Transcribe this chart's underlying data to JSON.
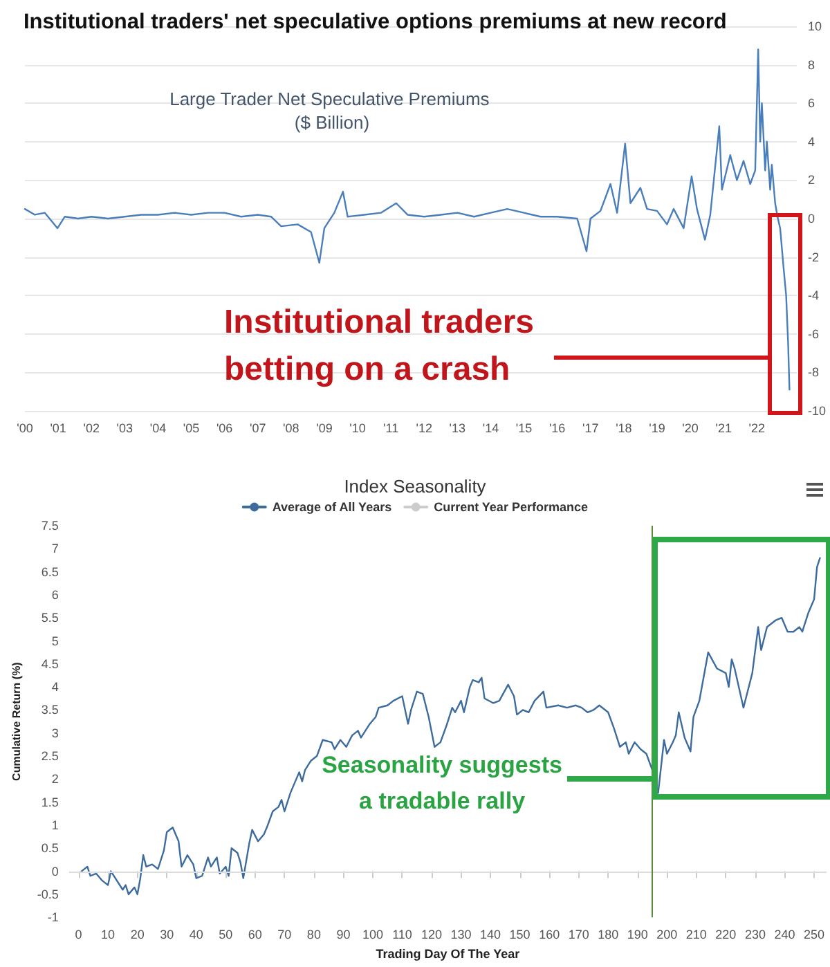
{
  "chart_data": [
    {
      "type": "line",
      "title": "Institutional traders' net speculative options premiums at new record",
      "subtitle": "Large Trader Net Speculative Premiums ($ Billion)",
      "x": [
        2000,
        2000.3,
        2000.6,
        2000.98,
        2001.2,
        2001.6,
        2002,
        2002.5,
        2003,
        2003.5,
        2004,
        2004.5,
        2005,
        2005.5,
        2006,
        2006.5,
        2007,
        2007.4,
        2007.7,
        2008.2,
        2008.6,
        2008.85,
        2009,
        2009.3,
        2009.56,
        2009.7,
        2010.2,
        2010.7,
        2011.16,
        2011.5,
        2012,
        2012.5,
        2013,
        2013.5,
        2014,
        2014.5,
        2015,
        2015.5,
        2016,
        2016.6,
        2016.88,
        2017,
        2017.3,
        2017.6,
        2017.8,
        2018.04,
        2018.2,
        2018.5,
        2018.7,
        2019,
        2019.3,
        2019.5,
        2019.8,
        2020.04,
        2020.2,
        2020.44,
        2020.6,
        2020.87,
        2020.95,
        2021.2,
        2021.4,
        2021.6,
        2021.8,
        2021.95,
        2022.04,
        2022.1,
        2022.15,
        2022.25,
        2022.3,
        2022.4,
        2022.45,
        2022.55,
        2022.62,
        2022.7,
        2022.8,
        2022.88,
        2022.94,
        2022.98
      ],
      "series": [
        {
          "color": "#4a7ebb",
          "values": [
            0.5,
            0.2,
            0.3,
            -0.5,
            0.1,
            0,
            0.1,
            0,
            0.1,
            0.2,
            0.2,
            0.3,
            0.2,
            0.3,
            0.3,
            0.1,
            0.2,
            0.1,
            -0.4,
            -0.3,
            -0.7,
            -2.3,
            -0.5,
            0.3,
            1.4,
            0.1,
            0.2,
            0.3,
            0.8,
            0.2,
            0.1,
            0.2,
            0.3,
            0.1,
            0.3,
            0.5,
            0.3,
            0.1,
            0.1,
            0,
            -1.7,
            0,
            0.4,
            1.8,
            0.3,
            3.9,
            0.8,
            1.6,
            0.5,
            0.4,
            -0.3,
            0.5,
            -0.5,
            2.2,
            0.5,
            -1.1,
            0.2,
            4.8,
            1.5,
            3.3,
            2,
            3,
            1.8,
            2.5,
            8.8,
            4,
            6,
            2.5,
            4,
            1.5,
            2.8,
            0.8,
            0.1,
            -0.5,
            -2.5,
            -4,
            -6.5,
            -8.9
          ]
        }
      ],
      "xlim": [
        2000,
        2023.2
      ],
      "xticks": [
        {
          "value": 2000,
          "label": "'00"
        },
        {
          "value": 2001,
          "label": "'01"
        },
        {
          "value": 2002,
          "label": "'02"
        },
        {
          "value": 2003,
          "label": "'03"
        },
        {
          "value": 2004,
          "label": "'04"
        },
        {
          "value": 2005,
          "label": "'05"
        },
        {
          "value": 2006,
          "label": "'06"
        },
        {
          "value": 2007,
          "label": "'07"
        },
        {
          "value": 2008,
          "label": "'08"
        },
        {
          "value": 2009,
          "label": "'09"
        },
        {
          "value": 2010,
          "label": "'10"
        },
        {
          "value": 2011,
          "label": "'11"
        },
        {
          "value": 2012,
          "label": "'12"
        },
        {
          "value": 2013,
          "label": "'13"
        },
        {
          "value": 2014,
          "label": "'14"
        },
        {
          "value": 2015,
          "label": "'15"
        },
        {
          "value": 2016,
          "label": "'16"
        },
        {
          "value": 2017,
          "label": "'17"
        },
        {
          "value": 2018,
          "label": "'18"
        },
        {
          "value": 2019,
          "label": "'19"
        },
        {
          "value": 2020,
          "label": "'20"
        },
        {
          "value": 2021,
          "label": "'21"
        },
        {
          "value": 2022,
          "label": "'22"
        }
      ],
      "ylim": [
        -10,
        10
      ],
      "yticks": [
        -10,
        -8,
        -6,
        -4,
        -2,
        0,
        2,
        4,
        6,
        8,
        10
      ],
      "grid": "y",
      "legend": false,
      "annotations": [
        "Institutional traders betting on a crash"
      ]
    },
    {
      "type": "line",
      "title": "Index Seasonality",
      "xlabel": "Trading Day Of The Year",
      "ylabel": "Cumulative Return (%)",
      "x": [
        1,
        3,
        4,
        6,
        8,
        10,
        11,
        13,
        15,
        16,
        17,
        19,
        20,
        21,
        22,
        23,
        25,
        27,
        29,
        30,
        32,
        34,
        35,
        37,
        39,
        40,
        42,
        44,
        45,
        47,
        48,
        50,
        51,
        52,
        54,
        55,
        56,
        58,
        59,
        61,
        63,
        64,
        66,
        68,
        69,
        70,
        72,
        75,
        76,
        77,
        79,
        81,
        83,
        86,
        87,
        89,
        91,
        93,
        95,
        96,
        99,
        101,
        102,
        105,
        107,
        110,
        112,
        113,
        115,
        117,
        119,
        121,
        123,
        125,
        127,
        128,
        130,
        131,
        133,
        134,
        136,
        137,
        138,
        141,
        143,
        146,
        148,
        149,
        151,
        153,
        155,
        158,
        159,
        163,
        166,
        169,
        171,
        173,
        175,
        177,
        180,
        182,
        184,
        186,
        187,
        189,
        191,
        193,
        195,
        197,
        199,
        200,
        202,
        203,
        204,
        206,
        208,
        209,
        211,
        214,
        217,
        220,
        221,
        222,
        223,
        226,
        229,
        231,
        232,
        234,
        237,
        239,
        241,
        243,
        245,
        246,
        248,
        250,
        251,
        252
      ],
      "series": [
        {
          "name": "Average of All Years",
          "color": "#3d6b9e",
          "values": [
            0,
            0.1,
            -0.1,
            -0.05,
            -0.2,
            -0.3,
            0,
            -0.2,
            -0.4,
            -0.3,
            -0.5,
            -0.35,
            -0.5,
            -0.15,
            0.35,
            0.1,
            0.15,
            0.05,
            0.45,
            0.85,
            0.95,
            0.65,
            0.1,
            0.35,
            0.15,
            -0.15,
            -0.1,
            0.3,
            0.1,
            0.3,
            -0.05,
            0.1,
            -0.1,
            0.5,
            0.4,
            0.2,
            -0.15,
            0.6,
            0.9,
            0.65,
            0.8,
            0.95,
            1.3,
            1.4,
            1.55,
            1.3,
            1.7,
            2.15,
            1.95,
            2.2,
            2.4,
            2.5,
            2.85,
            2.8,
            2.65,
            2.85,
            2.7,
            2.95,
            3.05,
            2.9,
            3.2,
            3.35,
            3.55,
            3.6,
            3.7,
            3.8,
            3.2,
            3.5,
            3.9,
            3.85,
            3.35,
            2.7,
            2.8,
            3.15,
            3.55,
            3.45,
            3.7,
            3.45,
            4.0,
            4.15,
            4.1,
            4.2,
            3.75,
            3.65,
            3.7,
            4.05,
            3.8,
            3.4,
            3.5,
            3.45,
            3.7,
            3.9,
            3.55,
            3.6,
            3.55,
            3.6,
            3.55,
            3.45,
            3.5,
            3.6,
            3.45,
            3.1,
            2.7,
            2.8,
            2.55,
            2.8,
            2.65,
            2.55,
            2.2,
            1.7,
            2.85,
            2.55,
            2.8,
            2.95,
            3.45,
            2.9,
            2.6,
            3.35,
            3.7,
            4.75,
            4.4,
            4.3,
            4.0,
            4.6,
            4.4,
            3.55,
            4.3,
            5.3,
            4.8,
            5.3,
            5.45,
            5.5,
            5.2,
            5.2,
            5.3,
            5.2,
            5.6,
            5.9,
            6.6,
            6.8
          ]
        },
        {
          "name": "Current Year Performance",
          "color": "#cccccc",
          "values": [
            null,
            null,
            null,
            null,
            null,
            null,
            null,
            null,
            null,
            null,
            null,
            null,
            null,
            null,
            null,
            null,
            null,
            null,
            null,
            null,
            null,
            null,
            null,
            null,
            null,
            null,
            null,
            null,
            null,
            null,
            null,
            null,
            null,
            null,
            null,
            null,
            null,
            null,
            null,
            null,
            null,
            null,
            null,
            null,
            null,
            null,
            null,
            null,
            null,
            null,
            null,
            null,
            null,
            null,
            null,
            null,
            null,
            null,
            null,
            null,
            null,
            null,
            null,
            null,
            null,
            null,
            null,
            null,
            null,
            null,
            null,
            null,
            null,
            null,
            null,
            null,
            null,
            null,
            null,
            null,
            null,
            null,
            null,
            null,
            null,
            null,
            null,
            null,
            null,
            null,
            null,
            null,
            null,
            null,
            null,
            null,
            null,
            null,
            null,
            null,
            null,
            null,
            null,
            null,
            null,
            null,
            null,
            null,
            null,
            null,
            null,
            null,
            null,
            null,
            null,
            null,
            null,
            null,
            null,
            null,
            null,
            null,
            null,
            null,
            null,
            null,
            null,
            null,
            null,
            null,
            null,
            null,
            null,
            null,
            null,
            null,
            null,
            null,
            null,
            null
          ]
        }
      ],
      "xlim": [
        -3,
        254
      ],
      "xticks": [
        0,
        10,
        20,
        30,
        40,
        50,
        60,
        70,
        80,
        90,
        100,
        110,
        120,
        130,
        140,
        150,
        160,
        170,
        180,
        190,
        200,
        210,
        220,
        230,
        240,
        250
      ],
      "ylim": [
        -1,
        7.5
      ],
      "yticks": [
        -1,
        -0.5,
        0,
        0.5,
        1,
        1.5,
        2,
        2.5,
        3,
        3.5,
        4,
        4.5,
        5,
        5.5,
        6,
        6.5,
        7,
        7.5
      ],
      "grid": false,
      "legend": "top",
      "ref_lines": [
        {
          "axis": "y",
          "value": 0,
          "color": "#dddddd"
        },
        {
          "axis": "x",
          "value": 195,
          "color": "#5a8a3c"
        }
      ],
      "annotations": [
        {
          "text": "Seasonality suggests a tradable rally",
          "x": 195,
          "y": 2.0
        }
      ]
    }
  ]
}
